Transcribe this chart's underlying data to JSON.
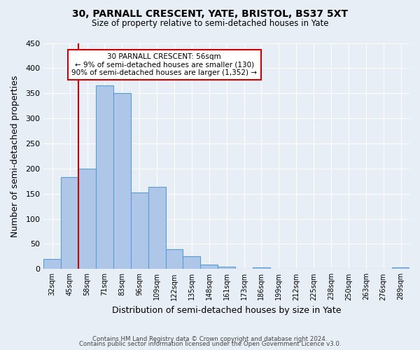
{
  "title": "30, PARNALL CRESCENT, YATE, BRISTOL, BS37 5XT",
  "subtitle": "Size of property relative to semi-detached houses in Yate",
  "xlabel": "Distribution of semi-detached houses by size in Yate",
  "ylabel": "Number of semi-detached properties",
  "bin_labels": [
    "32sqm",
    "45sqm",
    "58sqm",
    "71sqm",
    "83sqm",
    "96sqm",
    "109sqm",
    "122sqm",
    "135sqm",
    "148sqm",
    "161sqm",
    "173sqm",
    "186sqm",
    "199sqm",
    "212sqm",
    "225sqm",
    "238sqm",
    "250sqm",
    "263sqm",
    "276sqm",
    "289sqm"
  ],
  "bar_heights": [
    20,
    183,
    200,
    365,
    350,
    152,
    163,
    40,
    25,
    9,
    5,
    0,
    3,
    0,
    0,
    0,
    0,
    0,
    0,
    0,
    3
  ],
  "bar_color": "#aec6e8",
  "bar_edgecolor": "#5a9fd4",
  "background_color": "#e8eef5",
  "grid_color": "#ffffff",
  "property_line_label": "30 PARNALL CRESCENT: 56sqm",
  "annotation_smaller": "← 9% of semi-detached houses are smaller (130)",
  "annotation_larger": "90% of semi-detached houses are larger (1,352) →",
  "annotation_box_color": "#ffffff",
  "annotation_box_edgecolor": "#cc0000",
  "red_line_color": "#cc0000",
  "red_line_x": 1.5,
  "ylim": [
    0,
    450
  ],
  "yticks": [
    0,
    50,
    100,
    150,
    200,
    250,
    300,
    350,
    400,
    450
  ],
  "footer1": "Contains HM Land Registry data © Crown copyright and database right 2024.",
  "footer2": "Contains public sector information licensed under the Open Government Licence v3.0."
}
